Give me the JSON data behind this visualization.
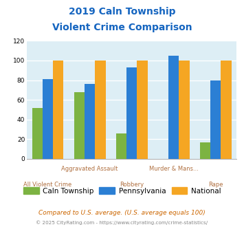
{
  "title_line1": "2019 Caln Township",
  "title_line2": "Violent Crime Comparison",
  "categories": [
    "All Violent Crime",
    "Aggravated Assault",
    "Robbery",
    "Murder & Mans...",
    "Rape"
  ],
  "caln": [
    52,
    68,
    26,
    0,
    17
  ],
  "pennsylvania": [
    81,
    76,
    93,
    105,
    80
  ],
  "national": [
    100,
    100,
    100,
    100,
    100
  ],
  "color_caln": "#7cb342",
  "color_pa": "#2b7fd4",
  "color_nat": "#f5a623",
  "ylim": [
    0,
    120
  ],
  "yticks": [
    0,
    20,
    40,
    60,
    80,
    100,
    120
  ],
  "bg_color": "#ddeef5",
  "legend_labels": [
    "Caln Township",
    "Pennsylvania",
    "National"
  ],
  "footnote1": "Compared to U.S. average. (U.S. average equals 100)",
  "footnote2": "© 2025 CityRating.com - https://www.cityrating.com/crime-statistics/"
}
